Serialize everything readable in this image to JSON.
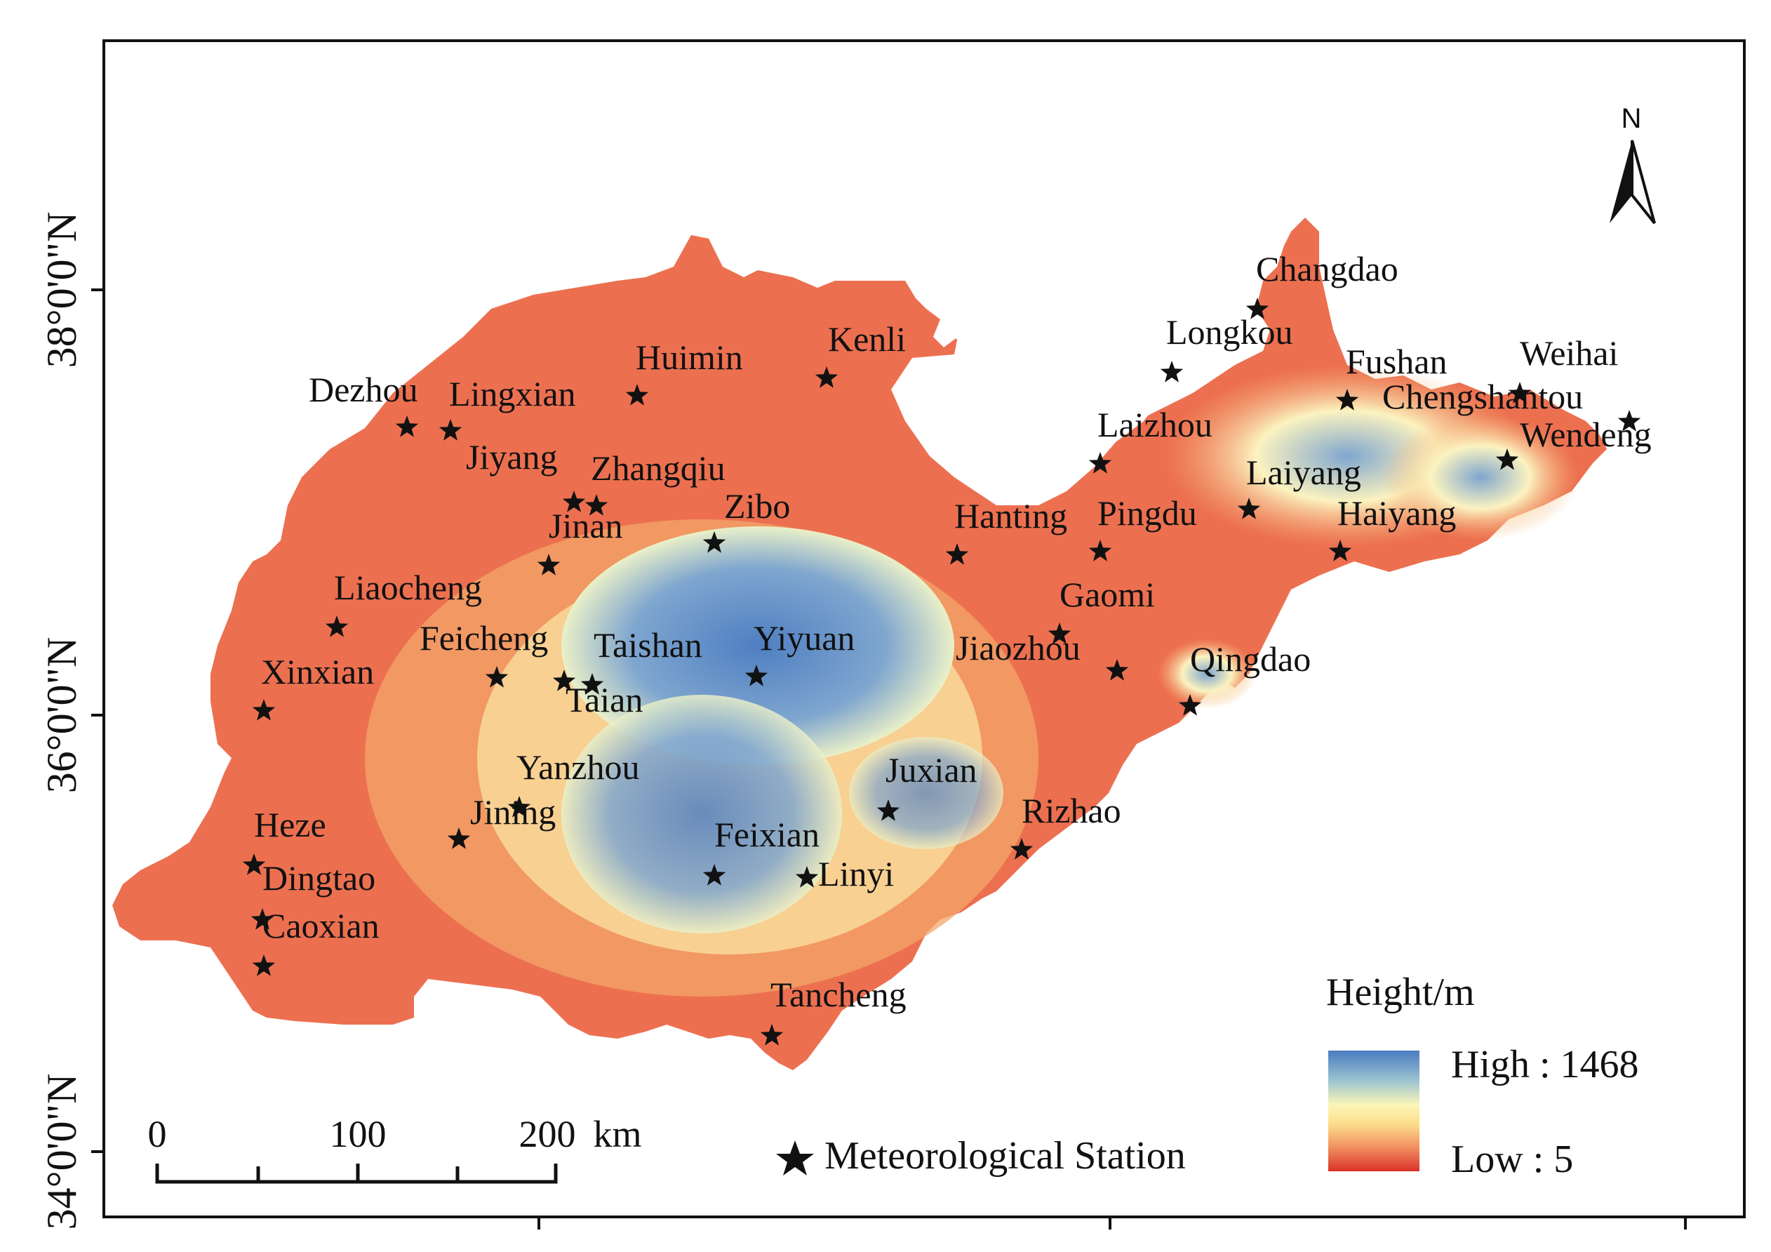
{
  "map": {
    "lat_labels": [
      "38°0'0\"N",
      "36°0'0\"N",
      "34°0'0\"N"
    ],
    "north_arrow": {
      "label": "N",
      "icon": "north-arrow-icon"
    },
    "legend": {
      "title": "Height/m",
      "high_label": "High : 1468",
      "low_label": "Low : 5",
      "high_value": 1468,
      "low_value": 5,
      "colors": {
        "high": "#4a7cc0",
        "mid": "#fbf6b8",
        "low": "#d9322a"
      },
      "station_label": "Meteorological Station",
      "station_icon": "star-icon"
    },
    "scale_bar": {
      "ticks": [
        "0",
        "100",
        "200"
      ],
      "unit": "km"
    },
    "colors": {
      "lowland": "#ea6a4a",
      "plain": "#f2955e",
      "foothill": "#f9d99a",
      "upland": "#eaf0c8",
      "mountain": "#4f7fc2"
    },
    "stations": [
      {
        "name": "Changdao"
      },
      {
        "name": "Longkou"
      },
      {
        "name": "Fushan"
      },
      {
        "name": "Weihai"
      },
      {
        "name": "Chengshantou"
      },
      {
        "name": "Wendeng"
      },
      {
        "name": "Laizhou"
      },
      {
        "name": "Laiyang"
      },
      {
        "name": "Haiyang"
      },
      {
        "name": "Pingdu"
      },
      {
        "name": "Hanting"
      },
      {
        "name": "Gaomi"
      },
      {
        "name": "Jiaozhou"
      },
      {
        "name": "Qingdao"
      },
      {
        "name": "Rizhao"
      },
      {
        "name": "Juxian"
      },
      {
        "name": "Linyi"
      },
      {
        "name": "Feixian"
      },
      {
        "name": "Tancheng"
      },
      {
        "name": "Yiyuan"
      },
      {
        "name": "Zibo"
      },
      {
        "name": "Kenli"
      },
      {
        "name": "Huimin"
      },
      {
        "name": "Zhangqiu"
      },
      {
        "name": "Jiyang"
      },
      {
        "name": "Jinan"
      },
      {
        "name": "Dezhou"
      },
      {
        "name": "Lingxian"
      },
      {
        "name": "Liaocheng"
      },
      {
        "name": "Feicheng"
      },
      {
        "name": "Taishan"
      },
      {
        "name": "Taian"
      },
      {
        "name": "Xinxian"
      },
      {
        "name": "Yanzhou"
      },
      {
        "name": "Jining"
      },
      {
        "name": "Heze"
      },
      {
        "name": "Dingtao"
      },
      {
        "name": "Caoxian"
      }
    ]
  }
}
